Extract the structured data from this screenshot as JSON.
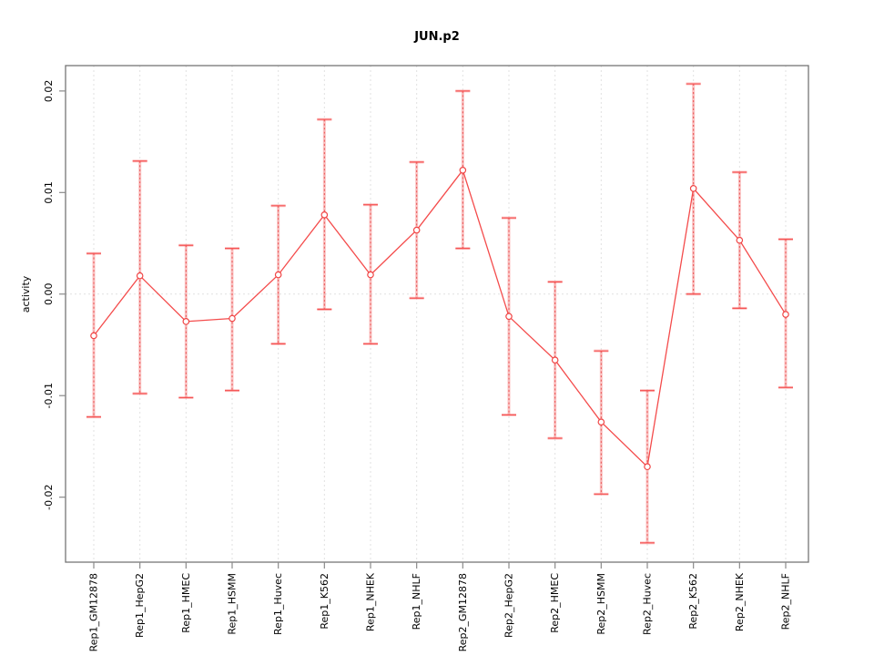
{
  "chart_data": {
    "type": "line",
    "title": "JUN.p2",
    "xlabel": "",
    "ylabel": "activity",
    "legend": "none",
    "marker": "open-circle",
    "error_bars": true,
    "categories": [
      "Rep1_GM12878",
      "Rep1_HepG2",
      "Rep1_HMEC",
      "Rep1_HSMM",
      "Rep1_Huvec",
      "Rep1_K562",
      "Rep1_NHEK",
      "Rep1_NHLF",
      "Rep2_GM12878",
      "Rep2_HepG2",
      "Rep2_HMEC",
      "Rep2_HSMM",
      "Rep2_Huvec",
      "Rep2_K562",
      "Rep2_NHEK",
      "Rep2_NHLF"
    ],
    "series": [
      {
        "name": "activity",
        "values": [
          -0.0041,
          0.0018,
          -0.0027,
          -0.0024,
          0.0019,
          0.0078,
          0.0019,
          0.0063,
          0.0122,
          -0.0022,
          -0.0065,
          -0.0126,
          -0.017,
          0.0104,
          0.0053,
          -0.002
        ],
        "ci_lower": [
          -0.0121,
          -0.0098,
          -0.0102,
          -0.0095,
          -0.0049,
          -0.0015,
          -0.0049,
          -0.0004,
          0.0045,
          -0.0119,
          -0.0142,
          -0.0197,
          -0.0245,
          0.0,
          -0.0014,
          -0.0092
        ],
        "ci_upper": [
          0.004,
          0.0131,
          0.0048,
          0.0045,
          0.0087,
          0.0172,
          0.0088,
          0.013,
          0.02,
          0.0075,
          0.0012,
          -0.0056,
          -0.0095,
          0.0207,
          0.012,
          0.0054
        ]
      }
    ],
    "ylim": [
      -0.0264,
      0.0225
    ],
    "yticks": {
      "values": [
        0.02,
        0.01,
        0,
        -0.01,
        -0.02
      ],
      "labels": [
        "0.02",
        "0.01",
        "0.00",
        "-0.01",
        "-0.02"
      ]
    },
    "grid": {
      "vertical_per_category": true,
      "horizontal_zero_line": true,
      "style": "dotted"
    },
    "colors": {
      "series_line": "#f44b4b",
      "marker_stroke": "#f04545",
      "marker_fill": "#ffffff",
      "error_band": "rgba(248,105,105,0.40)",
      "error_dotted": "#e04343",
      "cap": "#f55353",
      "grid": "#e1e1e1",
      "axis": "#757575",
      "tick": "#8a8a8a",
      "text": "#000000"
    }
  }
}
